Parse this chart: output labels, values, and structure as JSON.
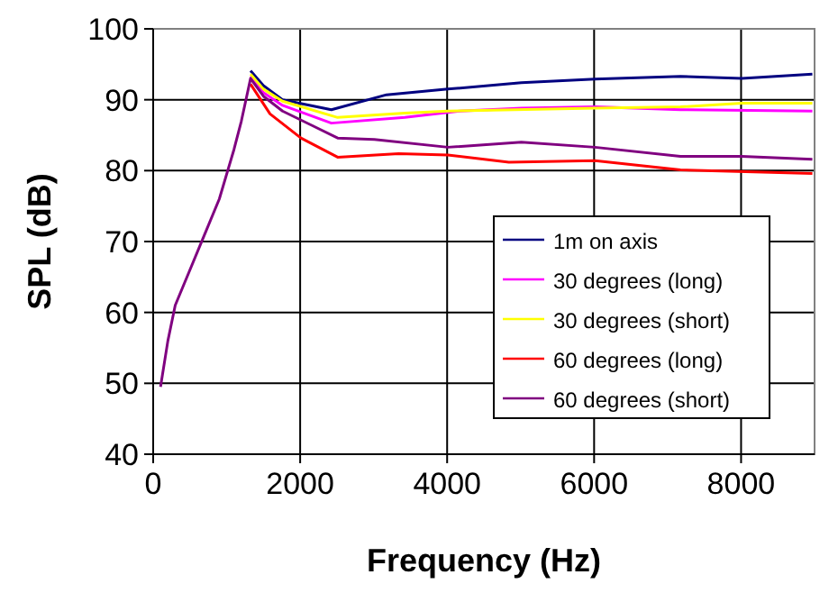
{
  "chart_data": {
    "type": "line",
    "xlabel": "Frequency (Hz)",
    "ylabel": "SPL (dB)",
    "xlim": [
      0,
      9000
    ],
    "xticks": [
      0,
      2000,
      4000,
      6000,
      8000
    ],
    "ylim": [
      40,
      100
    ],
    "yticks": [
      40,
      50,
      60,
      70,
      80,
      90,
      100
    ],
    "grid": true,
    "legend": "right",
    "marker": "none",
    "line_style": "solid",
    "series": [
      {
        "name": "1m on axis",
        "color": "#000080",
        "x": [
          1325,
          1500,
          1760,
          2425,
          3175,
          4010,
          5010,
          6010,
          7175,
          8010,
          8970
        ],
        "values": [
          94.1,
          92,
          90,
          88.6,
          90.7,
          91.5,
          92.4,
          92.9,
          93.3,
          93,
          93.6
        ]
      },
      {
        "name": "30 degrees (long)",
        "color": "#ff00ff",
        "x": [
          1325,
          1500,
          1760,
          2425,
          3425,
          4175,
          5010,
          6010,
          7175,
          8970
        ],
        "values": [
          93.3,
          91,
          89.2,
          86.7,
          87.5,
          88.4,
          88.8,
          89,
          88.6,
          88.4
        ]
      },
      {
        "name": "30 degrees (short)",
        "color": "#ffff00",
        "x": [
          1325,
          1500,
          1760,
          2510,
          3425,
          4010,
          6010,
          7175,
          8010,
          8970
        ],
        "values": [
          93.6,
          91.5,
          89.8,
          87.5,
          88.1,
          88.4,
          88.8,
          89,
          89.5,
          89.5
        ]
      },
      {
        "name": "60 degrees (long)",
        "color": "#ff0000",
        "x": [
          1325,
          1590,
          2010,
          2510,
          3340,
          4010,
          4840,
          6010,
          7175,
          8970
        ],
        "values": [
          92.2,
          88,
          84.6,
          81.9,
          82.4,
          82.2,
          81.2,
          81.4,
          80.1,
          79.6
        ]
      },
      {
        "name": "60 degrees (short)",
        "color": "#800080",
        "x": [
          100,
          200,
          300,
          500,
          700,
          900,
          1100,
          1200,
          1325,
          1500,
          1760,
          2175,
          2510,
          3010,
          4010,
          5010,
          6010,
          7175,
          8010,
          8970
        ],
        "values": [
          49.5,
          56,
          61,
          66,
          71,
          76,
          83,
          87,
          93,
          90.5,
          88.4,
          86.3,
          84.6,
          84.4,
          83.3,
          84,
          83.3,
          82,
          82,
          81.6
        ]
      }
    ]
  }
}
